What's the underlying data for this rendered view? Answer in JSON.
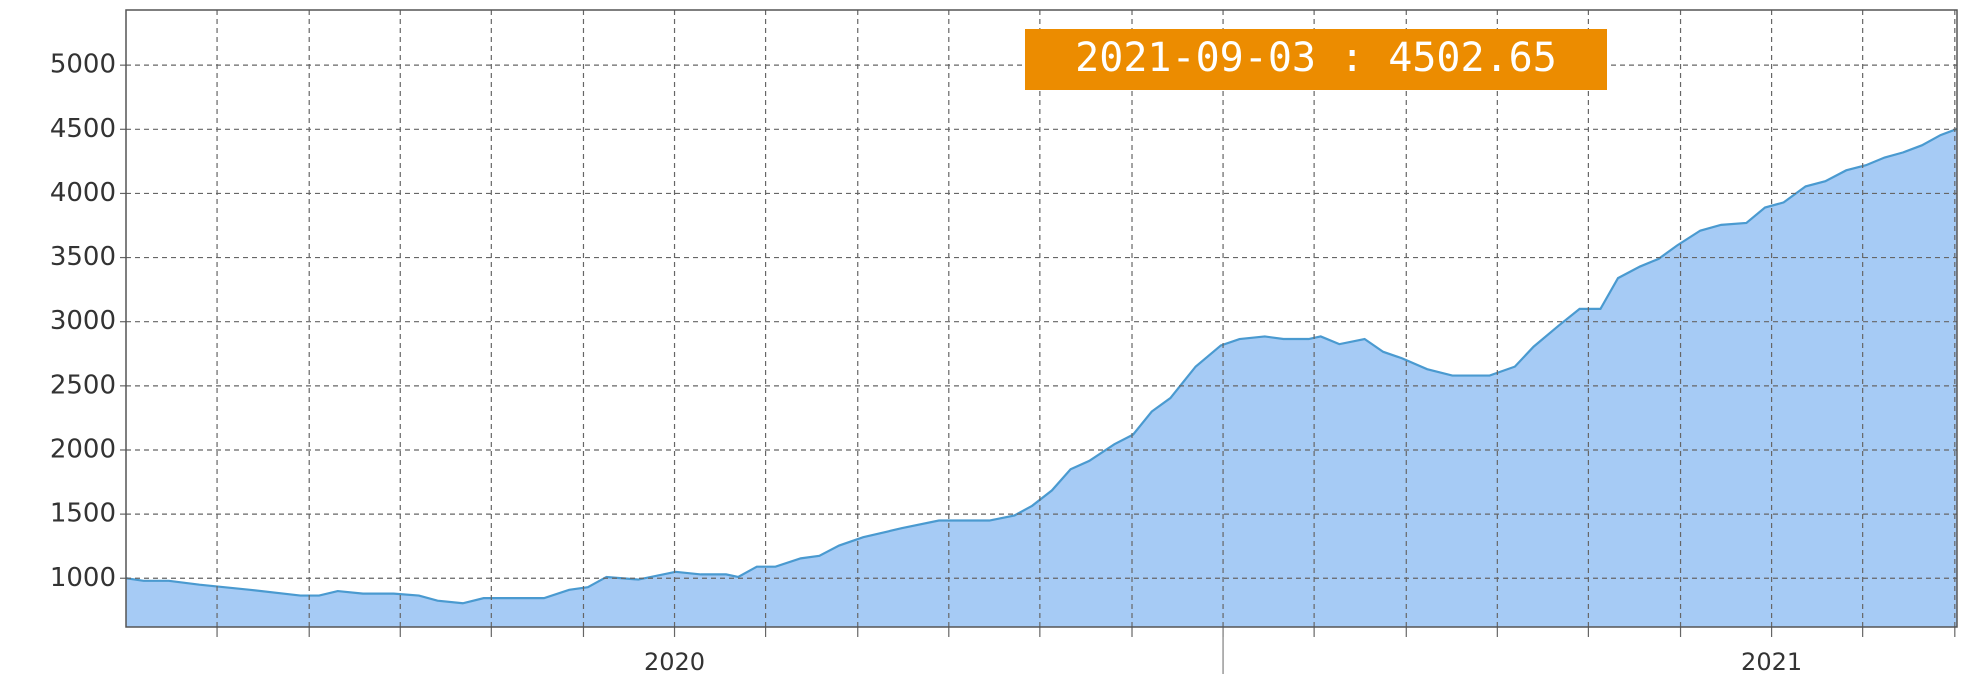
{
  "chart_data": {
    "type": "area",
    "annotation": "2021-09-03 : 4502.65",
    "color": "#a6cbf5",
    "line_color": "#4a9ad0",
    "grid": true,
    "xlim": [
      2020,
      2021.669
    ],
    "ylim": [
      620,
      5430
    ],
    "yticks": [
      1000,
      1500,
      2000,
      2500,
      3000,
      3500,
      4000,
      4500,
      5000
    ],
    "xticks": [
      {
        "value": 2020.5,
        "label": "2020"
      },
      {
        "value": 2021.5,
        "label": "2021"
      }
    ],
    "xminorticks": [
      2020.083,
      2020.167,
      2020.25,
      2020.333,
      2020.417,
      2020.5,
      2020.583,
      2020.667,
      2020.75,
      2020.833,
      2020.917,
      2021,
      2021.083,
      2021.167,
      2021.25,
      2021.333,
      2021.417,
      2021.5,
      2021.583,
      2021.667
    ],
    "year_boundaries": [
      2021
    ],
    "x": [
      2020.0,
      2020.016,
      2020.039,
      2020.067,
      2020.113,
      2020.159,
      2020.176,
      2020.193,
      2020.216,
      2020.244,
      2020.267,
      2020.284,
      2020.307,
      2020.326,
      2020.381,
      2020.404,
      2020.421,
      2020.438,
      2020.467,
      2020.501,
      2020.524,
      2020.547,
      2020.558,
      2020.575,
      2020.592,
      2020.615,
      2020.632,
      2020.65,
      2020.672,
      2020.707,
      2020.741,
      2020.787,
      2020.81,
      2020.826,
      2020.844,
      2020.861,
      2020.878,
      2020.901,
      2020.918,
      2020.935,
      2020.952,
      2020.975,
      2020.998,
      2021.015,
      2021.038,
      2021.055,
      2021.078,
      2021.089,
      2021.106,
      2021.129,
      2021.146,
      2021.163,
      2021.186,
      2021.209,
      2021.243,
      2021.266,
      2021.283,
      2021.306,
      2021.325,
      2021.344,
      2021.36,
      2021.38,
      2021.397,
      2021.414,
      2021.435,
      2021.454,
      2021.477,
      2021.494,
      2021.511,
      2021.531,
      2021.549,
      2021.568,
      2021.586,
      2021.603,
      2021.62,
      2021.637,
      2021.654,
      2021.669
    ],
    "values": [
      1000,
      980,
      980,
      950,
      910,
      865,
      865,
      900,
      880,
      880,
      865,
      825,
      805,
      845,
      845,
      910,
      930,
      1010,
      990,
      1050,
      1030,
      1030,
      1010,
      1090,
      1090,
      1155,
      1175,
      1255,
      1320,
      1390,
      1450,
      1450,
      1490,
      1565,
      1685,
      1850,
      1915,
      2045,
      2120,
      2300,
      2405,
      2650,
      2815,
      2865,
      2885,
      2865,
      2865,
      2885,
      2825,
      2865,
      2765,
      2715,
      2630,
      2580,
      2580,
      2650,
      2805,
      2970,
      3100,
      3100,
      3340,
      3430,
      3490,
      3595,
      3710,
      3755,
      3770,
      3890,
      3930,
      4055,
      4095,
      4180,
      4220,
      4280,
      4320,
      4375,
      4455,
      4502.65
    ]
  }
}
